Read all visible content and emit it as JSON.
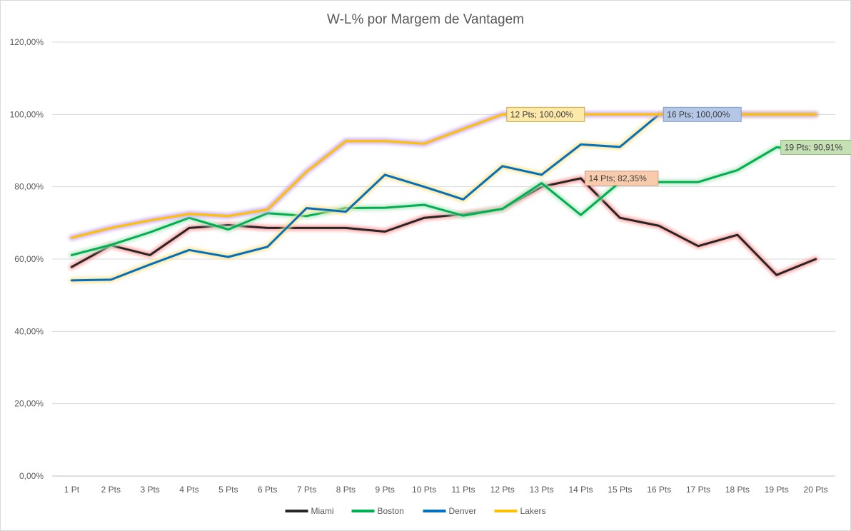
{
  "chart_data": {
    "type": "line",
    "title": "W-L% por Margem de Vantagem",
    "xlabel": "",
    "ylabel": "",
    "ylim": [
      0,
      120
    ],
    "y_ticks": [
      "0,00%",
      "20,00%",
      "40,00%",
      "60,00%",
      "80,00%",
      "100,00%",
      "120,00%"
    ],
    "grid": true,
    "legend_position": "bottom",
    "categories": [
      "1 Pt",
      "2 Pts",
      "3 Pts",
      "4 Pts",
      "5 Pts",
      "6 Pts",
      "7 Pts",
      "8 Pts",
      "9 Pts",
      "10 Pts",
      "11 Pts",
      "12 Pts",
      "13 Pts",
      "14 Pts",
      "15 Pts",
      "16 Pts",
      "17 Pts",
      "18 Pts",
      "19 Pts",
      "20 Pts"
    ],
    "series": [
      {
        "name": "Miami",
        "color": "#262626",
        "glow": "#ff9a9a",
        "values": [
          57.8,
          63.8,
          61.1,
          68.6,
          69.4,
          68.6,
          68.6,
          68.6,
          67.6,
          71.4,
          72.4,
          73.9,
          80.0,
          82.35,
          71.4,
          69.2,
          63.6,
          66.7,
          55.6,
          60.0
        ]
      },
      {
        "name": "Boston",
        "color": "#00b050",
        "glow": "#b5e6c4",
        "values": [
          61.1,
          63.9,
          67.4,
          71.4,
          68.2,
          72.7,
          71.9,
          74.1,
          74.2,
          75.0,
          72.0,
          73.9,
          81.0,
          72.2,
          81.3,
          81.3,
          81.3,
          84.6,
          90.91,
          90.0
        ]
      },
      {
        "name": "Denver",
        "color": "#0070c0",
        "glow": "#ffe28a",
        "values": [
          54.1,
          54.3,
          58.5,
          62.5,
          60.6,
          63.4,
          74.1,
          73.1,
          83.3,
          80.0,
          76.5,
          85.7,
          83.3,
          91.7,
          91.0,
          100.0,
          100.0,
          100.0,
          100.0,
          100.0
        ]
      },
      {
        "name": "Lakers",
        "color": "#ffc000",
        "glow": "#c9a6ef",
        "values": [
          65.9,
          68.6,
          70.7,
          72.5,
          71.9,
          73.7,
          84.2,
          92.6,
          92.6,
          91.9,
          96.0,
          100.0,
          100.0,
          100.0,
          100.0,
          100.0,
          100.0,
          100.0,
          100.0,
          100.0
        ]
      }
    ],
    "data_labels": [
      {
        "series": "Lakers",
        "index": 11,
        "text": "12 Pts; 100,00%",
        "bg": "#fde9a9",
        "border": "#c9a83f"
      },
      {
        "series": "Denver",
        "index": 15,
        "text": "16 Pts; 100,00%",
        "bg": "#b4c7e7",
        "border": "#7f9cc9"
      },
      {
        "series": "Miami",
        "index": 13,
        "text": "14 Pts; 82,35%",
        "bg": "#f8cbad",
        "border": "#d9957a"
      },
      {
        "series": "Boston",
        "index": 18,
        "text": "19 Pts; 90,91%",
        "bg": "#c5e0b4",
        "border": "#8dbb72"
      }
    ]
  }
}
